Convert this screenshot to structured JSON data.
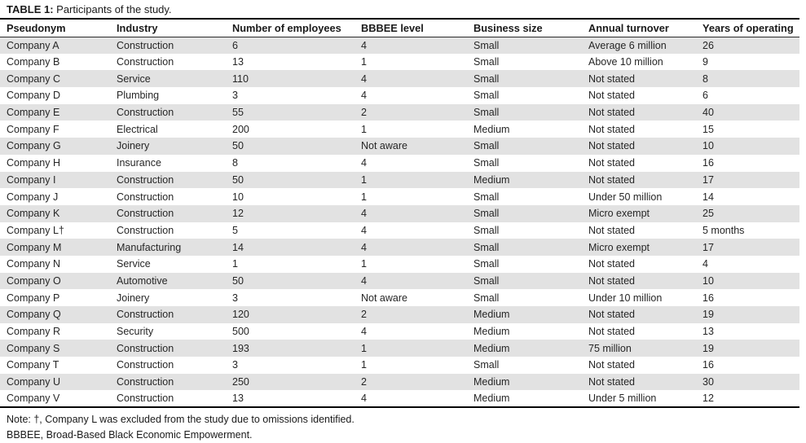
{
  "title": {
    "label": "TABLE 1:",
    "text": " Participants of the study."
  },
  "table": {
    "columns": [
      "Pseudonym",
      "Industry",
      "Number of employees",
      "BBBEE level",
      "Business size",
      "Annual turnover",
      "Years of operating"
    ],
    "rows": [
      [
        "Company A",
        "Construction",
        "6",
        "4",
        "Small",
        "Average 6 million",
        "26"
      ],
      [
        "Company B",
        "Construction",
        "13",
        "1",
        "Small",
        "Above 10 million",
        "9"
      ],
      [
        "Company C",
        "Service",
        "110",
        "4",
        "Small",
        "Not stated",
        "8"
      ],
      [
        "Company D",
        "Plumbing",
        "3",
        "4",
        "Small",
        "Not stated",
        "6"
      ],
      [
        "Company E",
        "Construction",
        "55",
        "2",
        "Small",
        "Not stated",
        "40"
      ],
      [
        "Company F",
        "Electrical",
        "200",
        "1",
        "Medium",
        "Not stated",
        "15"
      ],
      [
        "Company G",
        "Joinery",
        "50",
        "Not aware",
        "Small",
        "Not stated",
        "10"
      ],
      [
        "Company H",
        "Insurance",
        "8",
        "4",
        "Small",
        "Not stated",
        "16"
      ],
      [
        "Company I",
        "Construction",
        "50",
        "1",
        "Medium",
        "Not stated",
        "17"
      ],
      [
        "Company J",
        "Construction",
        "10",
        "1",
        "Small",
        "Under 50 million",
        "14"
      ],
      [
        "Company K",
        "Construction",
        "12",
        "4",
        "Small",
        "Micro exempt",
        "25"
      ],
      [
        "Company L†",
        "Construction",
        "5",
        "4",
        "Small",
        "Not stated",
        "5 months"
      ],
      [
        "Company M",
        "Manufacturing",
        "14",
        "4",
        "Small",
        "Micro exempt",
        "17"
      ],
      [
        "Company N",
        "Service",
        "1",
        "1",
        "Small",
        "Not stated",
        "4"
      ],
      [
        "Company O",
        "Automotive",
        "50",
        "4",
        "Small",
        "Not stated",
        "10"
      ],
      [
        "Company P",
        "Joinery",
        "3",
        "Not aware",
        "Small",
        "Under 10 million",
        "16"
      ],
      [
        "Company Q",
        "Construction",
        "120",
        "2",
        "Medium",
        "Not stated",
        "19"
      ],
      [
        "Company R",
        "Security",
        "500",
        "4",
        "Medium",
        "Not stated",
        "13"
      ],
      [
        "Company S",
        "Construction",
        "193",
        "1",
        "Medium",
        "75 million",
        "19"
      ],
      [
        "Company T",
        "Construction",
        "3",
        "1",
        "Small",
        "Not stated",
        "16"
      ],
      [
        "Company U",
        "Construction",
        "250",
        "2",
        "Medium",
        "Not stated",
        "30"
      ],
      [
        "Company V",
        "Construction",
        "13",
        "4",
        "Medium",
        "Under 5 million",
        "12"
      ]
    ]
  },
  "notes": [
    "Note: †, Company L was excluded from the study due to omissions identified.",
    "BBBEE, Broad-Based Black Economic Empowerment."
  ],
  "colors": {
    "row_shade": "#e2e2e2",
    "text": "#212121",
    "rule": "#000000"
  }
}
